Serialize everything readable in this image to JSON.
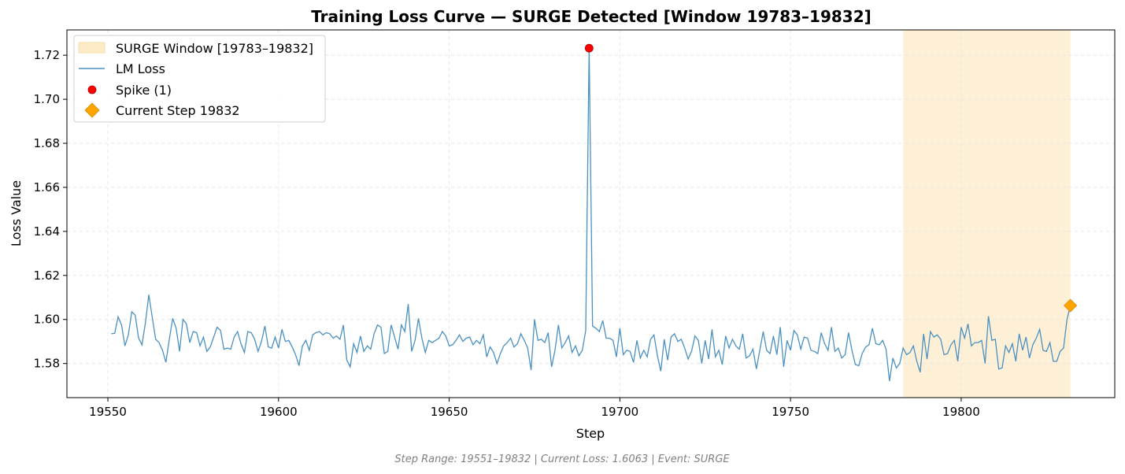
{
  "chart_data": {
    "type": "line",
    "title": "Training Loss Curve — SURGE Detected [Window 19783–19832]",
    "xlabel": "Step",
    "ylabel": "Loss Value",
    "xlim": [
      19538,
      19845
    ],
    "ylim": [
      1.5645,
      1.7315
    ],
    "xticks": [
      "19550",
      "19600",
      "19650",
      "19700",
      "19750",
      "19800"
    ],
    "yticks": [
      "1.58",
      "1.60",
      "1.62",
      "1.64",
      "1.66",
      "1.68",
      "1.70",
      "1.72"
    ],
    "grid": true,
    "legend_position": "top-left",
    "series": [
      {
        "name": "LM Loss",
        "color": "#4a90c2",
        "x_start": 19551,
        "x_step": 1,
        "values": [
          1.5935,
          1.5937,
          1.6012,
          1.5975,
          1.588,
          1.593,
          1.6035,
          1.602,
          1.5915,
          1.5885,
          1.5985,
          1.6112,
          1.601,
          1.591,
          1.5895,
          1.586,
          1.5805,
          1.591,
          1.6005,
          1.596,
          1.5855,
          1.6,
          1.598,
          1.5895,
          1.5945,
          1.594,
          1.588,
          1.592,
          1.5855,
          1.5875,
          1.592,
          1.5965,
          1.595,
          1.5865,
          1.587,
          1.5865,
          1.592,
          1.5945,
          1.589,
          1.585,
          1.5945,
          1.594,
          1.591,
          1.5855,
          1.59,
          1.597,
          1.5875,
          1.587,
          1.592,
          1.587,
          1.5955,
          1.59,
          1.5905,
          1.5875,
          1.584,
          1.579,
          1.588,
          1.5905,
          1.586,
          1.593,
          1.594,
          1.5945,
          1.593,
          1.594,
          1.5935,
          1.5915,
          1.5925,
          1.591,
          1.5975,
          1.5815,
          1.5785,
          1.589,
          1.585,
          1.5925,
          1.5855,
          1.588,
          1.5865,
          1.5935,
          1.5975,
          1.5965,
          1.5845,
          1.5855,
          1.5975,
          1.592,
          1.5865,
          1.5975,
          1.5945,
          1.607,
          1.5855,
          1.5905,
          1.6005,
          1.5915,
          1.585,
          1.5905,
          1.5895,
          1.5905,
          1.5915,
          1.5945,
          1.5925,
          1.588,
          1.5885,
          1.5905,
          1.593,
          1.59,
          1.5915,
          1.592,
          1.5885,
          1.5905,
          1.589,
          1.593,
          1.583,
          1.5875,
          1.585,
          1.58,
          1.5845,
          1.588,
          1.5895,
          1.5915,
          1.5875,
          1.589,
          1.5935,
          1.5905,
          1.587,
          1.577,
          1.6,
          1.5905,
          1.591,
          1.5895,
          1.594,
          1.5785,
          1.586,
          1.5975,
          1.587,
          1.5895,
          1.5925,
          1.585,
          1.588,
          1.5835,
          1.586,
          1.595,
          1.7232,
          1.597,
          1.596,
          1.5945,
          1.5995,
          1.5915,
          1.5915,
          1.5905,
          1.583,
          1.596,
          1.584,
          1.586,
          1.5855,
          1.5805,
          1.5905,
          1.5825,
          1.586,
          1.583,
          1.591,
          1.593,
          1.5835,
          1.5765,
          1.591,
          1.5815,
          1.592,
          1.5935,
          1.59,
          1.591,
          1.587,
          1.582,
          1.5855,
          1.5925,
          1.5905,
          1.58,
          1.5905,
          1.582,
          1.5955,
          1.583,
          1.586,
          1.5795,
          1.5925,
          1.587,
          1.591,
          1.588,
          1.5865,
          1.5935,
          1.5825,
          1.5835,
          1.5865,
          1.5775,
          1.586,
          1.5945,
          1.586,
          1.5845,
          1.5925,
          1.584,
          1.5965,
          1.5785,
          1.5905,
          1.586,
          1.595,
          1.593,
          1.5865,
          1.592,
          1.5915,
          1.586,
          1.5855,
          1.5845,
          1.594,
          1.589,
          1.586,
          1.5965,
          1.5855,
          1.587,
          1.5825,
          1.584,
          1.594,
          1.586,
          1.5795,
          1.579,
          1.5845,
          1.5875,
          1.5885,
          1.596,
          1.589,
          1.5885,
          1.5905,
          1.5865,
          1.572,
          1.5825,
          1.578,
          1.58,
          1.587,
          1.584,
          1.585,
          1.588,
          1.581,
          1.576,
          1.5935,
          1.582,
          1.5945,
          1.592,
          1.593,
          1.591,
          1.584,
          1.5845,
          1.5885,
          1.5905,
          1.581,
          1.5965,
          1.5915,
          1.598,
          1.588,
          1.5895,
          1.5895,
          1.5905,
          1.58,
          1.6015,
          1.5905,
          1.591,
          1.5775,
          1.578,
          1.588,
          1.585,
          1.589,
          1.581,
          1.5935,
          1.586,
          1.592,
          1.5825,
          1.5885,
          1.5915,
          1.5955,
          1.586,
          1.5855,
          1.5895,
          1.581,
          1.581,
          1.5855,
          1.587,
          1.6,
          1.6063
        ]
      }
    ],
    "spike": {
      "name": "Spike (1)",
      "x": 19691,
      "y": 1.7232,
      "color": "#ff0000"
    },
    "current": {
      "name": "Current Step 19832",
      "x": 19832,
      "y": 1.6063,
      "color": "#ffa500"
    },
    "surge_window": {
      "name": "SURGE Window [19783–19832]",
      "x_start": 19783,
      "x_end": 19832,
      "color": "#fdebc8"
    },
    "footer": "Step Range: 19551–19832 | Current Loss: 1.6063 | Event: SURGE"
  }
}
